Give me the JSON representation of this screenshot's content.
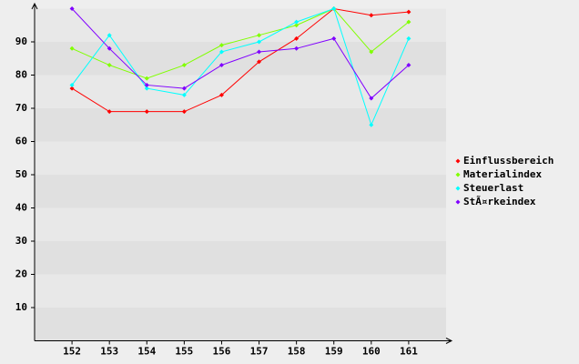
{
  "chart_data": {
    "type": "line",
    "categories": [
      "152",
      "153",
      "154",
      "155",
      "156",
      "157",
      "158",
      "159",
      "160",
      "161"
    ],
    "series": [
      {
        "name": "Einflussbereich",
        "color": "#ff0000",
        "values": [
          76,
          69,
          69,
          69,
          74,
          84,
          91,
          100,
          98,
          99
        ]
      },
      {
        "name": "Materialindex",
        "color": "#80ff00",
        "values": [
          88,
          83,
          79,
          83,
          89,
          92,
          95,
          100,
          87,
          96
        ]
      },
      {
        "name": "Steuerlast",
        "color": "#00ffff",
        "values": [
          77,
          92,
          76,
          74,
          87,
          90,
          96,
          100,
          65,
          91
        ]
      },
      {
        "name": "StÃ¤rkeindex",
        "color": "#8000ff",
        "values": [
          100,
          88,
          77,
          76,
          83,
          87,
          88,
          91,
          73,
          83
        ]
      }
    ],
    "ylim": [
      0,
      100
    ],
    "yticks": [
      10,
      20,
      30,
      40,
      50,
      60,
      70,
      80,
      90
    ],
    "legend": "right",
    "stripes": true
  }
}
